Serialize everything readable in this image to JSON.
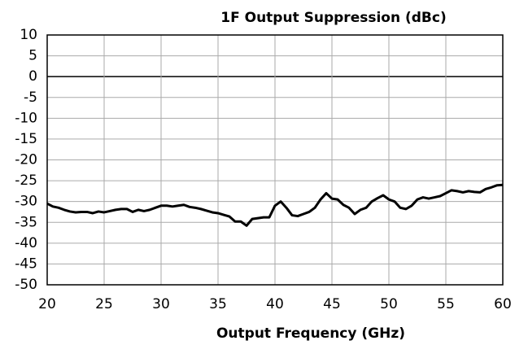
{
  "chart_data": {
    "type": "line",
    "title": "1F Output Suppression (dBc)",
    "xlabel": "Output Frequency (GHz)",
    "x": [
      20,
      20.5,
      21,
      21.5,
      22,
      22.5,
      23,
      23.5,
      24,
      24.5,
      25,
      25.5,
      26,
      26.5,
      27,
      27.5,
      28,
      28.5,
      29,
      29.5,
      30,
      30.5,
      31,
      31.5,
      32,
      32.5,
      33,
      33.5,
      34,
      34.5,
      35,
      35.5,
      36,
      36.5,
      37,
      37.5,
      38,
      38.5,
      39,
      39.5,
      40,
      40.5,
      41,
      41.5,
      42,
      42.5,
      43,
      43.5,
      44,
      44.5,
      45,
      45.5,
      46,
      46.5,
      47,
      47.5,
      48,
      48.5,
      49,
      49.5,
      50,
      50.5,
      51,
      51.5,
      52,
      52.5,
      53,
      53.5,
      54,
      54.5,
      55,
      55.5,
      56,
      56.5,
      57,
      57.5,
      58,
      58.5,
      59,
      59.5,
      60
    ],
    "series": [
      {
        "name": "1F",
        "color": "#000000",
        "values": [
          -30.5,
          -31.2,
          -31.5,
          -32,
          -32.4,
          -32.6,
          -32.5,
          -32.5,
          -32.8,
          -32.4,
          -32.6,
          -32.3,
          -32,
          -31.8,
          -31.8,
          -32.5,
          -32,
          -32.3,
          -32,
          -31.5,
          -31,
          -31,
          -31.2,
          -31,
          -30.8,
          -31.3,
          -31.5,
          -31.8,
          -32.2,
          -32.6,
          -32.8,
          -33.2,
          -33.6,
          -34.8,
          -34.8,
          -35.8,
          -34.2,
          -34,
          -33.8,
          -33.8,
          -31,
          -30,
          -31.5,
          -33.3,
          -33.5,
          -33,
          -32.5,
          -31.5,
          -29.5,
          -28,
          -29.3,
          -29.5,
          -30.8,
          -31.5,
          -33,
          -32,
          -31.5,
          -30,
          -29.2,
          -28.5,
          -29.5,
          -30,
          -31.5,
          -31.8,
          -31,
          -29.5,
          -29,
          -29.3,
          -29,
          -28.7,
          -28,
          -27.3,
          -27.5,
          -27.8,
          -27.5,
          -27.7,
          -27.8,
          -27,
          -26.6,
          -26.1,
          -26
        ]
      }
    ],
    "xlim": [
      20,
      60
    ],
    "xticks": [
      20,
      25,
      30,
      35,
      40,
      45,
      50,
      55,
      60
    ],
    "ylim": [
      -50,
      10
    ],
    "yticks": [
      -50,
      -45,
      -40,
      -35,
      -30,
      -25,
      -20,
      -15,
      -10,
      -5,
      0,
      5,
      10
    ],
    "grid": true
  }
}
